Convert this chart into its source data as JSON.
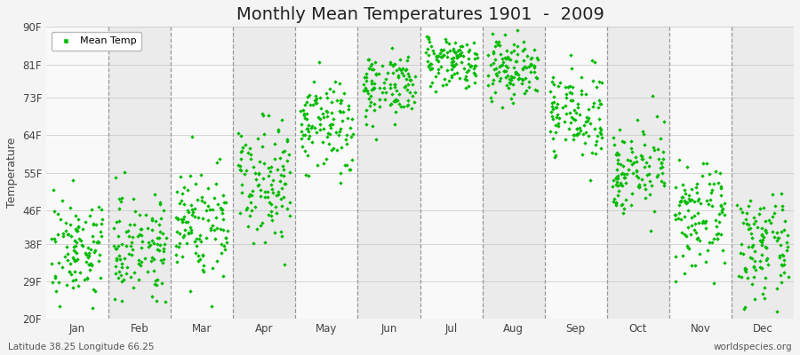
{
  "title": "Monthly Mean Temperatures 1901  -  2009",
  "ylabel": "Temperature",
  "bottom_left_text": "Latitude 38.25 Longitude 66.25",
  "bottom_right_text": "worldspecies.org",
  "legend_label": "Mean Temp",
  "dot_color": "#00bb00",
  "dot_size": 5,
  "fig_bg_color": "#f4f4f4",
  "plot_bg_color": "#ebebeb",
  "alt_band_color": "#f9f9f9",
  "ytick_labels": [
    "20F",
    "29F",
    "38F",
    "46F",
    "55F",
    "64F",
    "73F",
    "81F",
    "90F"
  ],
  "ytick_values": [
    20,
    29,
    38,
    46,
    55,
    64,
    73,
    81,
    90
  ],
  "months": [
    "Jan",
    "Feb",
    "Mar",
    "Apr",
    "May",
    "Jun",
    "Jul",
    "Aug",
    "Sep",
    "Oct",
    "Nov",
    "Dec"
  ],
  "num_years": 109,
  "mean_temps_by_month": [
    37,
    38,
    43,
    54,
    66,
    76,
    82,
    80,
    69,
    56,
    44,
    37
  ],
  "std_by_month": [
    6,
    6,
    7,
    7,
    6,
    4,
    3,
    4,
    5,
    5,
    6,
    6
  ],
  "ylim": [
    20,
    90
  ],
  "title_fontsize": 14,
  "axis_fontsize": 9,
  "tick_fontsize": 8.5,
  "legend_fontsize": 8
}
